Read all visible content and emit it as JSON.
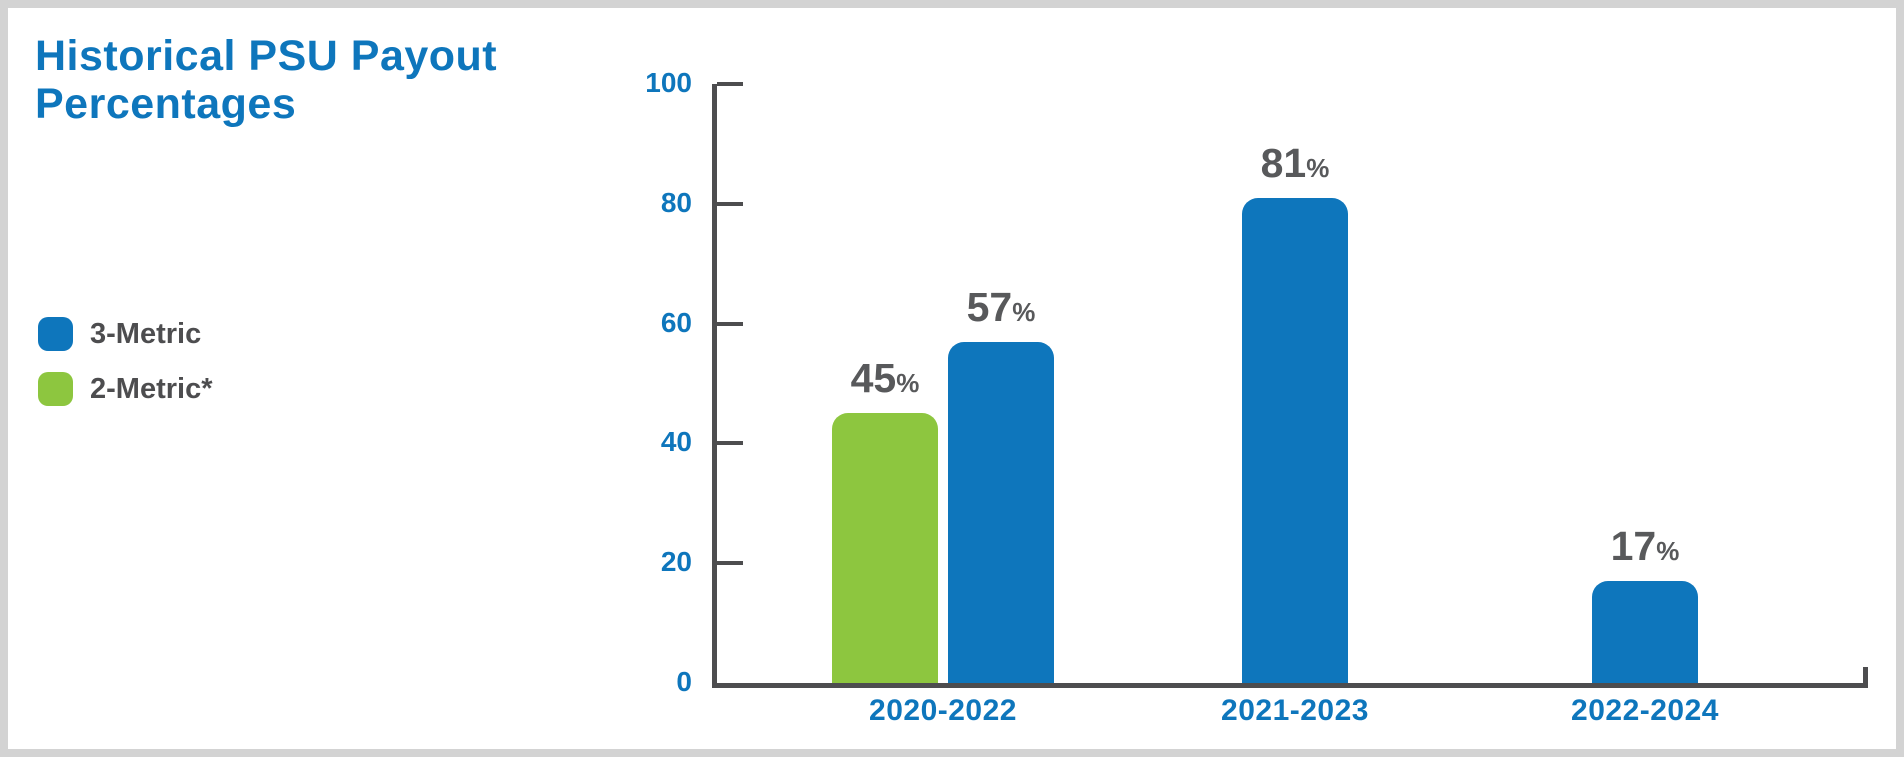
{
  "page": {
    "background": "#ffffff",
    "frame_border_color": "#d3d3d3"
  },
  "chart_data": {
    "type": "bar",
    "title_lines": [
      "Historical PSU Payout",
      "Percentages"
    ],
    "categories": [
      "2020-2022",
      "2021-2023",
      "2022-2024"
    ],
    "series": [
      {
        "name": "2-Metric*",
        "color": "#8DC63F",
        "values": [
          45,
          null,
          null
        ]
      },
      {
        "name": "3-Metric",
        "color": "#0E76BC",
        "values": [
          57,
          81,
          17
        ]
      }
    ],
    "value_suffix": "%",
    "y_ticks": [
      0,
      20,
      40,
      60,
      80,
      100
    ],
    "ylim": [
      0,
      100
    ],
    "grid": false,
    "legend_position": "left",
    "legend": [
      {
        "label": "3-Metric",
        "color": "#0E76BC"
      },
      {
        "label": "2-Metric*",
        "color": "#8DC63F"
      }
    ],
    "colors": {
      "title": "#0E76BC",
      "tick_label": "#0E76BC",
      "category_label": "#0E76BC",
      "value_label": "#58595B",
      "axis": "#4D4D4F",
      "legend_text": "#4D4D4F"
    }
  }
}
